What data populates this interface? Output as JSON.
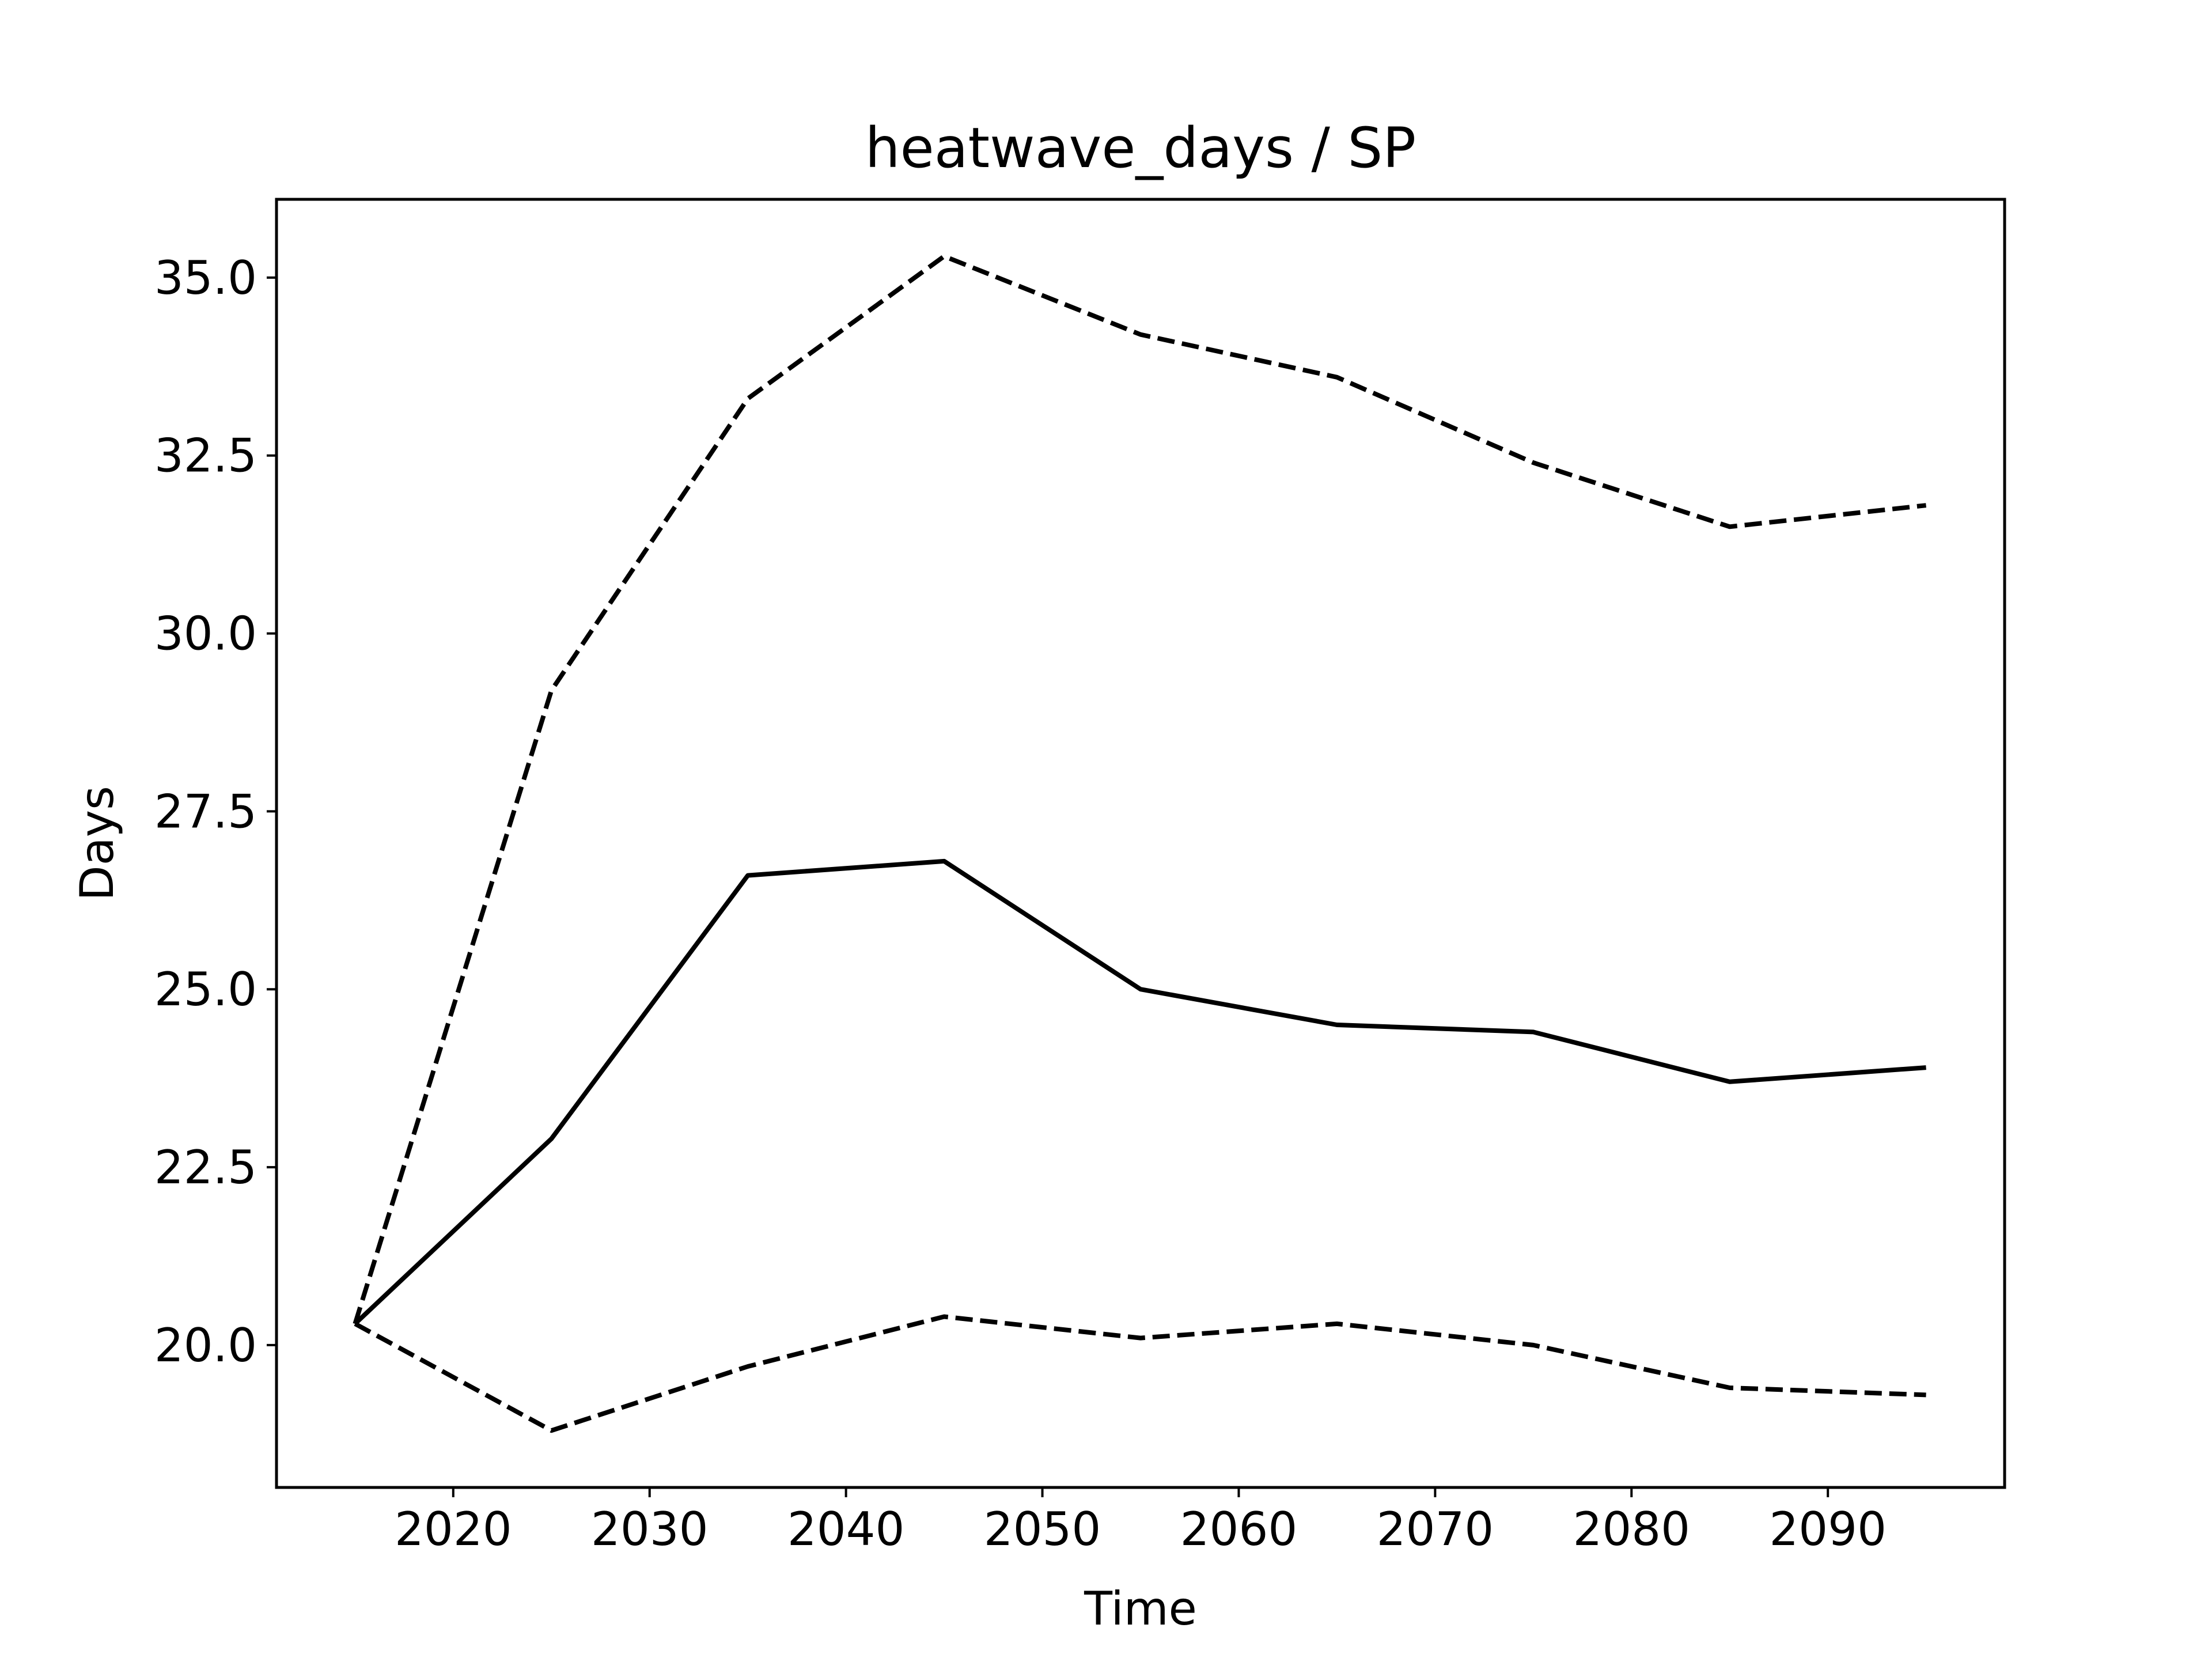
{
  "chart_data": {
    "type": "line",
    "title": "heatwave_days / SP",
    "xlabel": "Time",
    "ylabel": "Days",
    "xlim": [
      2011,
      2099
    ],
    "ylim": [
      18.0,
      36.1
    ],
    "xticks": [
      2020,
      2030,
      2040,
      2050,
      2060,
      2070,
      2080,
      2090
    ],
    "yticks": [
      20.0,
      22.5,
      25.0,
      27.5,
      30.0,
      32.5,
      35.0
    ],
    "grid": false,
    "legend": "none",
    "x": [
      2015,
      2025,
      2035,
      2045,
      2055,
      2065,
      2075,
      2085,
      2095
    ],
    "series": [
      {
        "style": "dashed",
        "color": "#000000",
        "values": [
          20.3,
          29.2,
          33.3,
          35.3,
          34.2,
          33.6,
          32.4,
          31.5,
          31.8
        ]
      },
      {
        "style": "solid",
        "color": "#000000",
        "values": [
          20.3,
          22.9,
          26.6,
          26.8,
          25.0,
          24.5,
          24.4,
          23.7,
          23.9
        ]
      },
      {
        "style": "dashed",
        "color": "#000000",
        "values": [
          20.3,
          18.8,
          19.7,
          20.4,
          20.1,
          20.3,
          20.0,
          19.4,
          19.3
        ]
      }
    ]
  }
}
